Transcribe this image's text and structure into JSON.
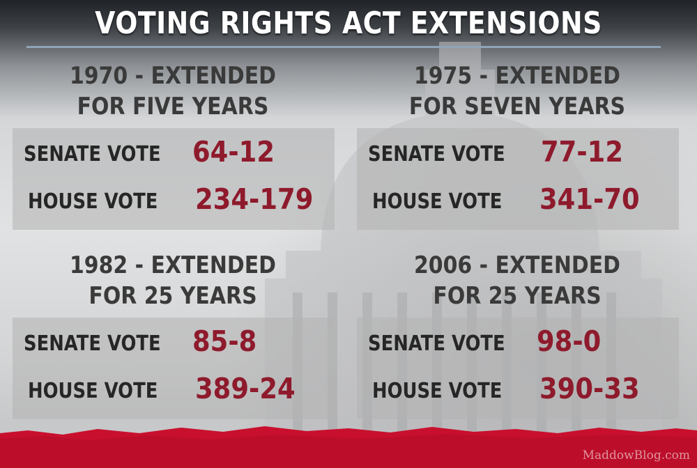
{
  "title": "VOTING RIGHTS ACT EXTENSIONS",
  "blocks": [
    {
      "heading_line1": "1970 - EXTENDED",
      "heading_line2": "FOR FIVE YEARS",
      "senate_label": "SENATE VOTE",
      "senate_value": "64-12",
      "house_label": "HOUSE VOTE",
      "house_value": "234-179"
    },
    {
      "heading_line1": "1975 - EXTENDED",
      "heading_line2": "FOR SEVEN YEARS",
      "senate_label": "SENATE VOTE",
      "senate_value": "77-12",
      "house_label": "HOUSE VOTE",
      "house_value": "341-70"
    },
    {
      "heading_line1": "1982 - EXTENDED",
      "heading_line2": "FOR 25 YEARS",
      "senate_label": "SENATE VOTE",
      "senate_value": "85-8",
      "house_label": "HOUSE VOTE",
      "house_value": "389-24"
    },
    {
      "heading_line1": "2006 - EXTENDED",
      "heading_line2": "FOR 25 YEARS",
      "senate_label": "SENATE VOTE",
      "senate_value": "98-0",
      "house_label": "HOUSE VOTE",
      "house_value": "390-33"
    }
  ],
  "credit": "MaddowBlog.com",
  "colors": {
    "vote_value": "#8e1a2c",
    "footer_band": "#c8102e",
    "heading": "#3a3a3a",
    "title": "#ffffff"
  }
}
